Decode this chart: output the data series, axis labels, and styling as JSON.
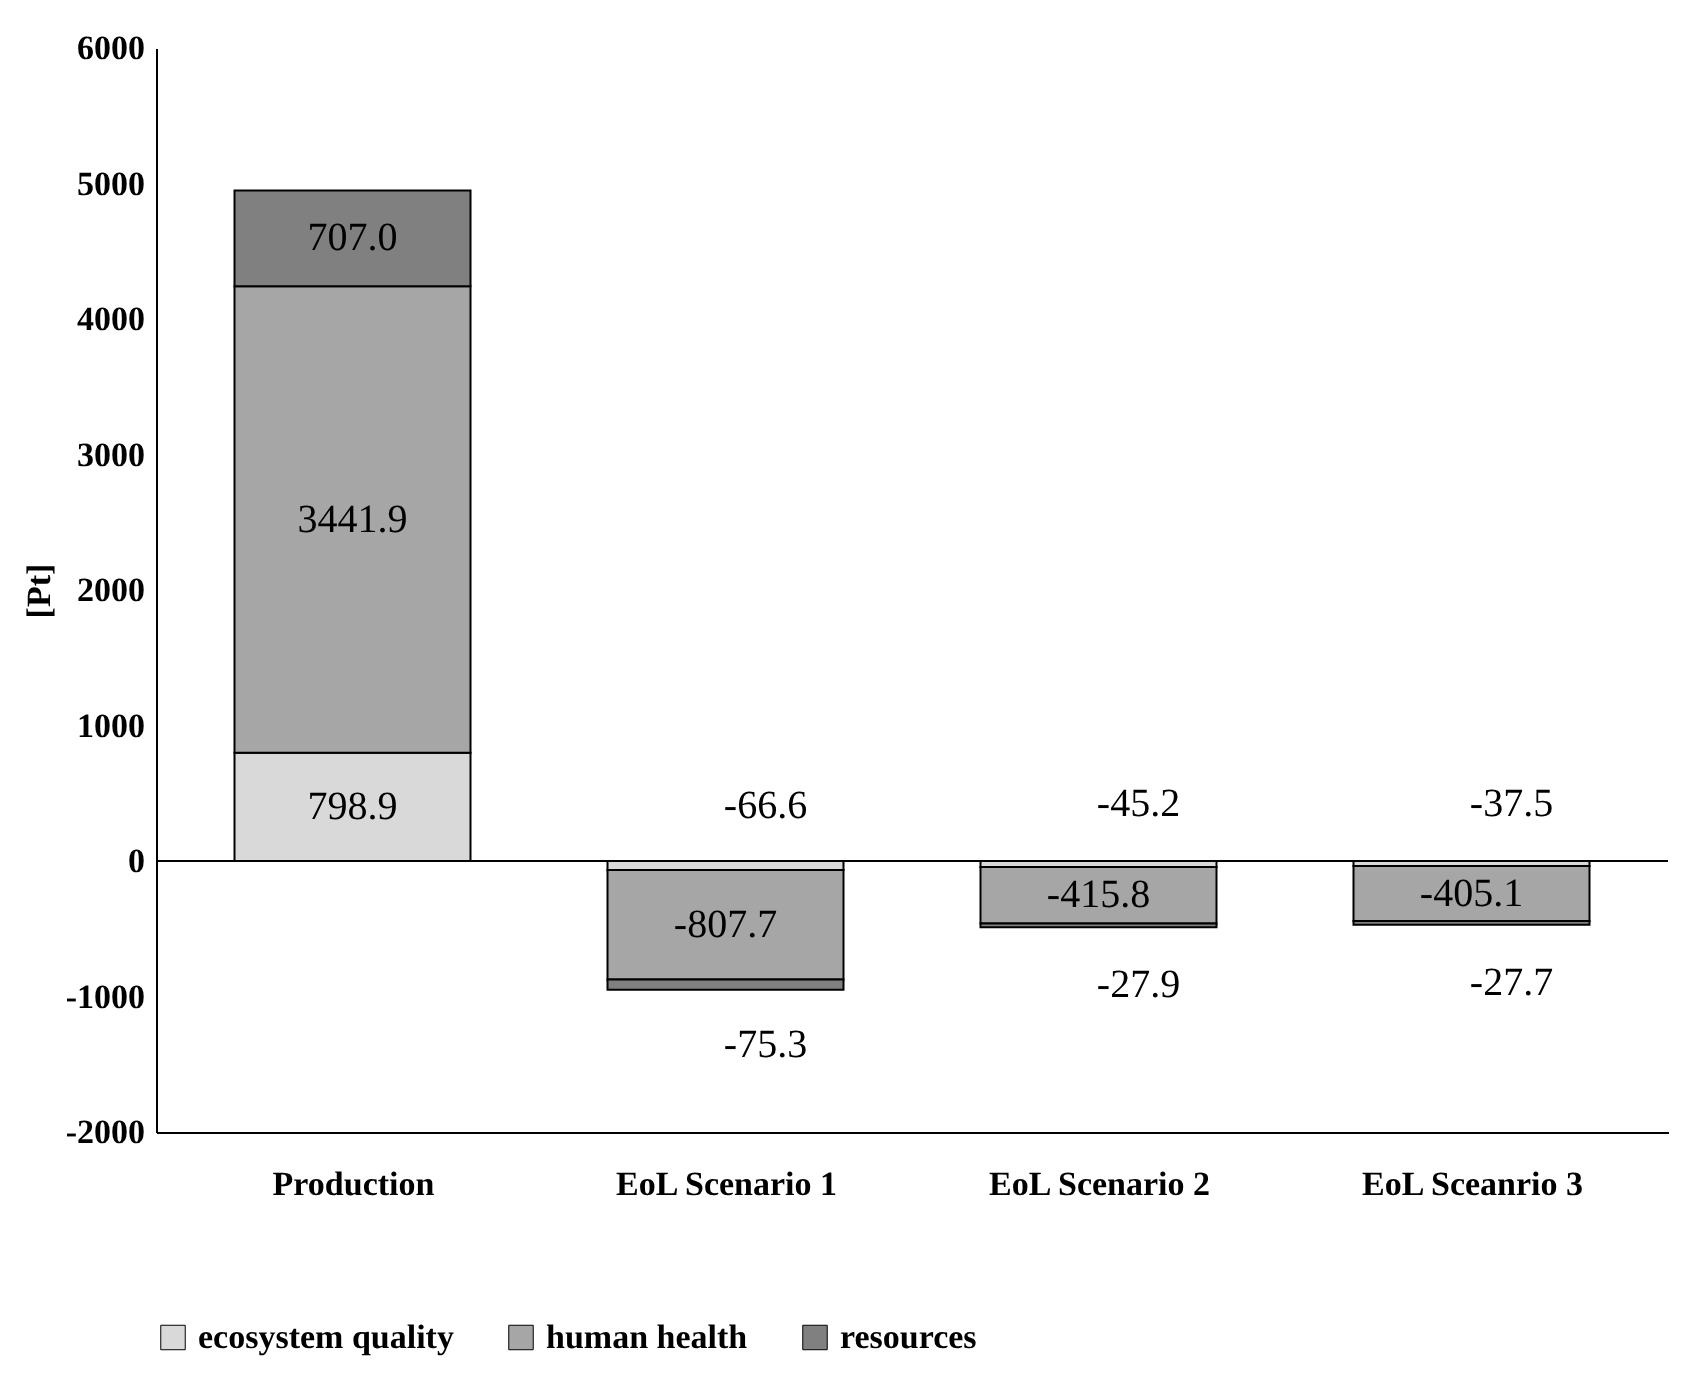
{
  "chart_data": {
    "type": "bar",
    "stacked": true,
    "ylabel": "[Pt]",
    "categories": [
      "Production",
      "EoL Scenario 1",
      "EoL Scenario 2",
      "EoL Sceanrio 3"
    ],
    "series": [
      {
        "name": "ecosystem quality",
        "color": "#d9d9d9",
        "values": [
          798.9,
          -66.6,
          -45.2,
          -37.5
        ],
        "value_labels": [
          "798.9",
          "-66.6",
          "-45.2",
          "-37.5"
        ]
      },
      {
        "name": "human health",
        "color": "#a6a6a6",
        "values": [
          3441.9,
          -807.7,
          -415.8,
          -405.1
        ],
        "value_labels": [
          "3441.9",
          "-807.7",
          "-415.8",
          "-405.1"
        ]
      },
      {
        "name": "resources",
        "color": "#808080",
        "values": [
          707.0,
          -75.3,
          -27.9,
          -27.7
        ],
        "value_labels": [
          "707.0",
          "-75.3",
          "-27.9",
          "-27.7"
        ]
      }
    ],
    "ylim": [
      -2000,
      6000
    ],
    "yticks": [
      -2000,
      -1000,
      0,
      1000,
      2000,
      3000,
      4000,
      5000,
      6000
    ],
    "ref_lines": [
      {
        "axis": "y",
        "value": 0,
        "label": null
      }
    ],
    "grid": false,
    "legend": "bottom"
  }
}
